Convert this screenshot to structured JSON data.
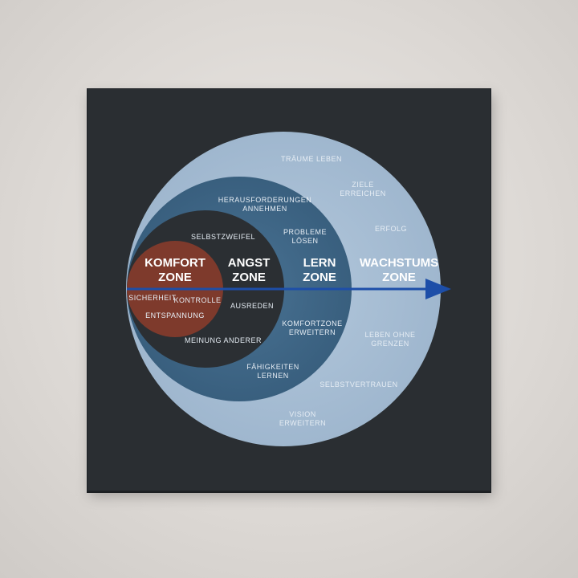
{
  "colors": {
    "background": "#d9d5d1",
    "canvas": "#2a2e32",
    "wachstums_zone": "#a2bad2",
    "lern_zone": "#3f6686",
    "angst_zone": "#2b2f33",
    "komfort_zone": "#7e3a2c",
    "arrow": "#1d4ea8"
  },
  "zones": {
    "komfort": {
      "title_line1": "KOMFORT",
      "title_line2": "ZONE",
      "items": [
        "SICHERHEIT",
        "KONTROLLE",
        "ENTSPANNUNG"
      ]
    },
    "angst": {
      "title_line1": "ANGST",
      "title_line2": "ZONE",
      "items": [
        "SELBSTZWEIFEL",
        "AUSREDEN",
        "MEINUNG ANDERER"
      ]
    },
    "lern": {
      "title_line1": "LERN",
      "title_line2": "ZONE",
      "items": [
        [
          "HERAUSFORDERUNGEN",
          "ANNEHMEN"
        ],
        [
          "PROBLEME",
          "LÖSEN"
        ],
        [
          "KOMFORTZONE",
          "ERWEITERN"
        ],
        [
          "FÄHIGKEITEN",
          "LERNEN"
        ]
      ]
    },
    "wachstums": {
      "title_line1": "WACHSTUMS",
      "title_line2": "ZONE",
      "items": [
        [
          "TRÄUME LEBEN"
        ],
        [
          "ZIELE",
          "ERREICHEN"
        ],
        [
          "ERFOLG"
        ],
        [
          "LEBEN OHNE",
          "GRENZEN"
        ],
        [
          "SELBSTVERTRAUEN"
        ],
        [
          "VISION",
          "ERWEITERN"
        ]
      ]
    }
  }
}
